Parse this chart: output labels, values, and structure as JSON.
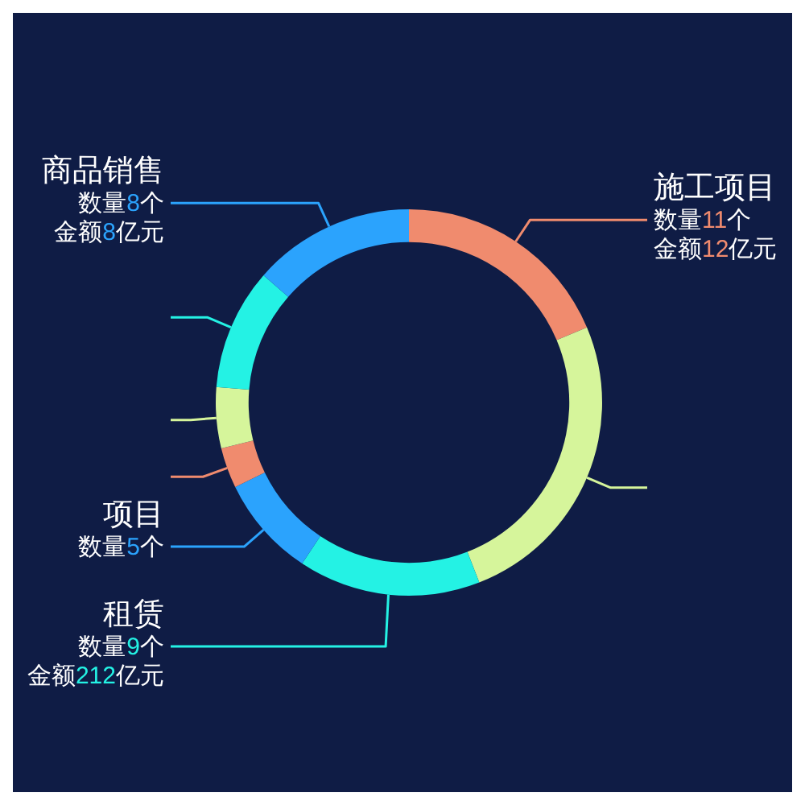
{
  "chart_data": {
    "type": "donut",
    "categories": [
      "施工项目",
      null,
      "租赁",
      "项目",
      null,
      null,
      null,
      "商品销售"
    ],
    "values": [
      11,
      15,
      9,
      5,
      2,
      3,
      6,
      8
    ],
    "colors": [
      "#f08b6e",
      "#d6f59b",
      "#24f2e4",
      "#2ba3fd",
      "#f08b6e",
      "#d6f59b",
      "#24f2e4",
      "#2ba3fd"
    ],
    "value_labels": [
      "数量11个",
      null,
      "数量9个",
      "数量5个",
      null,
      null,
      null,
      "数量8个"
    ],
    "annotations": [
      {
        "text": "金额12亿元",
        "x": "施工项目"
      },
      {
        "text": "金额212亿元",
        "x": "租赁"
      },
      {
        "text": "金额8亿元",
        "x": "商品销售"
      }
    ]
  }
}
